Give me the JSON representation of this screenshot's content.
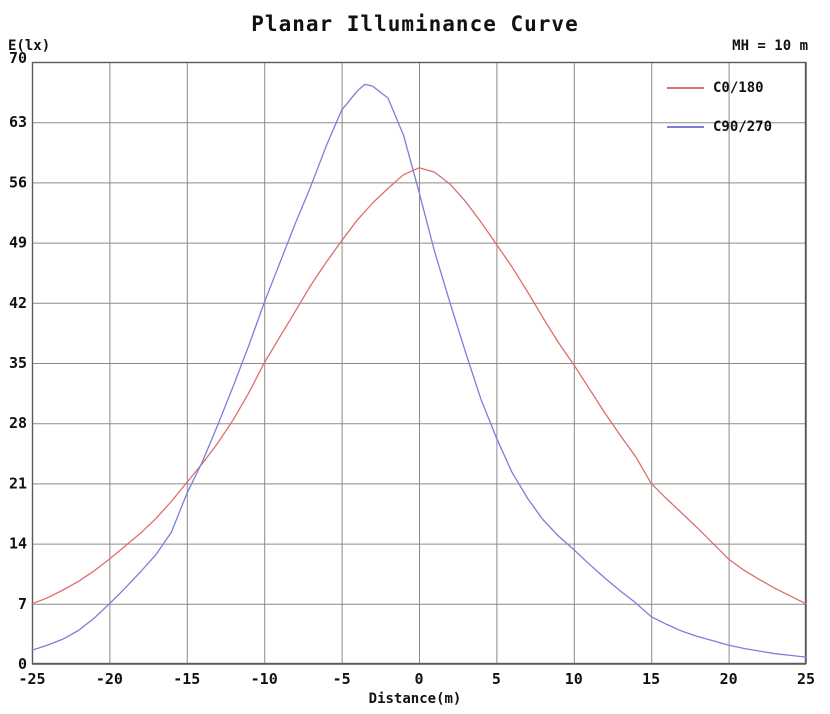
{
  "header": {
    "title": "Planar Illuminance Curve",
    "annotation": "MH = 10 m"
  },
  "chart_data": {
    "type": "line",
    "title": "Planar Illuminance Curve",
    "annotation": "MH = 10 m",
    "xlabel": "Distance(m)",
    "ylabel": "E(lx)",
    "xlim": [
      -25,
      25
    ],
    "ylim": [
      0,
      70
    ],
    "x_ticks": [
      -25,
      -20,
      -15,
      -10,
      -5,
      0,
      5,
      10,
      15,
      20,
      25
    ],
    "y_ticks": [
      0,
      7,
      14,
      21,
      28,
      35,
      42,
      49,
      56,
      63,
      70
    ],
    "grid": true,
    "grid_color": "#8a8a8a",
    "border_color": "#5a5a5a",
    "legend_position": "top-right",
    "series": [
      {
        "name": "C0/180",
        "color": "#e06c6c",
        "x": [
          -25,
          -24,
          -23,
          -22,
          -21,
          -20,
          -19,
          -18,
          -17,
          -16,
          -15,
          -14,
          -13,
          -12,
          -11,
          -10,
          -9,
          -8,
          -7,
          -6,
          -5,
          -4,
          -3,
          -2,
          -1,
          0,
          1,
          2,
          3,
          4,
          5,
          6,
          7,
          8,
          9,
          10,
          11,
          12,
          13,
          14,
          15,
          16,
          17,
          18,
          19,
          20,
          21,
          22,
          23,
          24,
          25
        ],
        "values": [
          7.0,
          7.7,
          8.6,
          9.6,
          10.8,
          12.2,
          13.7,
          15.2,
          16.9,
          18.9,
          21.1,
          23.3,
          25.7,
          28.4,
          31.5,
          35.0,
          38.0,
          41.0,
          44.0,
          46.7,
          49.2,
          51.6,
          53.6,
          55.3,
          56.9,
          57.7,
          57.2,
          55.8,
          53.8,
          51.4,
          48.8,
          46.2,
          43.3,
          40.3,
          37.4,
          34.8,
          32.0,
          29.2,
          26.6,
          24.1,
          21.0,
          19.2,
          17.5,
          15.8,
          14.0,
          12.2,
          10.9,
          9.8,
          8.8,
          7.9,
          7.0
        ]
      },
      {
        "name": "C90/270",
        "color": "#7d7ddb",
        "x": [
          -25,
          -24,
          -23,
          -22,
          -21,
          -20,
          -19,
          -18,
          -17,
          -16,
          -15,
          -14,
          -13,
          -12,
          -11,
          -10,
          -9,
          -8,
          -7,
          -6,
          -5,
          -4,
          -3.5,
          -3,
          -2,
          -1,
          0,
          1,
          2,
          3,
          4,
          5,
          6,
          7,
          8,
          9,
          10,
          11,
          12,
          13,
          14,
          15,
          16,
          17,
          18,
          19,
          20,
          21,
          22,
          23,
          24,
          25
        ],
        "values": [
          1.6,
          2.2,
          2.9,
          3.9,
          5.3,
          7.0,
          8.8,
          10.7,
          12.7,
          15.3,
          19.8,
          23.5,
          27.8,
          32.3,
          37.0,
          42.0,
          46.6,
          51.2,
          55.5,
          60.2,
          64.4,
          66.6,
          67.4,
          67.2,
          65.8,
          61.5,
          54.9,
          48.0,
          42.0,
          36.3,
          30.8,
          26.3,
          22.3,
          19.3,
          16.8,
          14.9,
          13.3,
          11.6,
          10.0,
          8.5,
          7.1,
          5.5,
          4.6,
          3.8,
          3.2,
          2.7,
          2.2,
          1.8,
          1.5,
          1.2,
          1.0,
          0.8
        ]
      }
    ]
  }
}
